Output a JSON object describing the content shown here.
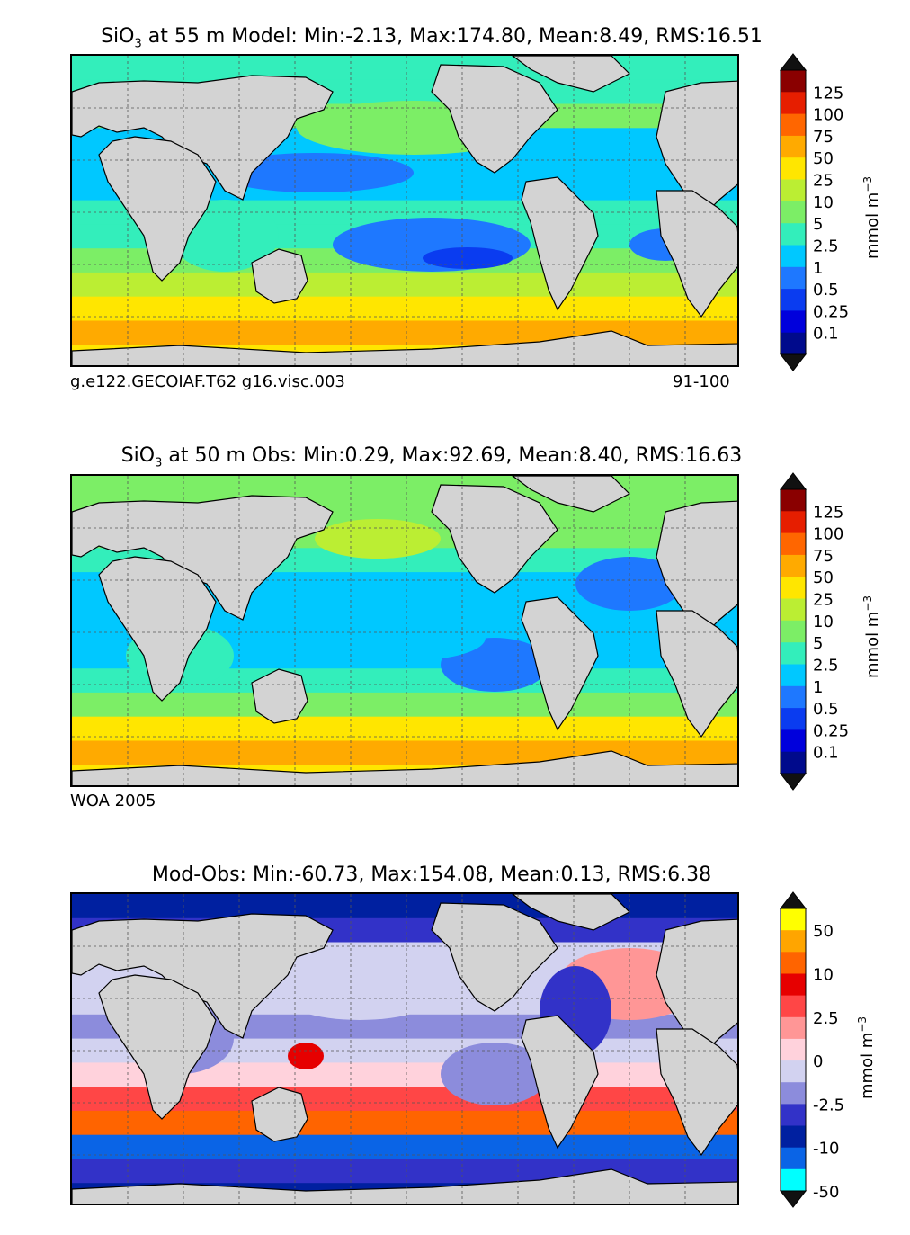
{
  "colors": {
    "land": "#d3d3d3",
    "grid": "#555555",
    "coast": "#000000",
    "sio3_levels": [
      "#000a8c",
      "#0000dc",
      "#0a3cf0",
      "#1e78ff",
      "#00c8ff",
      "#33eebb",
      "#7cee66",
      "#bbee33",
      "#ffe600",
      "#ffaa00",
      "#ff6600",
      "#e61e00",
      "#8a0000"
    ],
    "diff_levels": [
      "#00ffff",
      "#0a64e6",
      "#0020a0",
      "#3232c8",
      "#8c8cdc",
      "#d2d2f0",
      "#ffd2dc",
      "#ff9696",
      "#ff4646",
      "#e60000",
      "#ff6400",
      "#ffa500",
      "#ffff00"
    ]
  },
  "chart_data": [
    {
      "type": "heatmap",
      "title_prefix": "SiO",
      "title_sub": "3",
      "title_rest": " at 55 m Model: Min:-2.13, Max:174.80, Mean:8.49, RMS:16.51",
      "caption_left": "g.e122.GECOIAF.T62 g16.visc.003",
      "caption_right": "91-100",
      "colorbar": {
        "label": "mmol m",
        "label_sup": "−3",
        "ticks": [
          "125",
          "100",
          "75",
          "50",
          "25",
          "10",
          "5",
          "2.5",
          "1",
          "0.5",
          "0.25",
          "0.1"
        ],
        "extend": "both"
      },
      "stats": {
        "min": -2.13,
        "max": 174.8,
        "mean": 8.49,
        "rms": 16.51
      }
    },
    {
      "type": "heatmap",
      "title_prefix": "SiO",
      "title_sub": "3",
      "title_rest": " at 50 m Obs: Min:0.29, Max:92.69, Mean:8.40, RMS:16.63",
      "caption_left": "WOA 2005",
      "caption_right": "",
      "colorbar": {
        "label": "mmol m",
        "label_sup": "−3",
        "ticks": [
          "125",
          "100",
          "75",
          "50",
          "25",
          "10",
          "5",
          "2.5",
          "1",
          "0.5",
          "0.25",
          "0.1"
        ],
        "extend": "both"
      },
      "stats": {
        "min": 0.29,
        "max": 92.69,
        "mean": 8.4,
        "rms": 16.63
      }
    },
    {
      "type": "heatmap",
      "title_prefix": "",
      "title_sub": "",
      "title_rest": "Mod-Obs: Min:-60.73, Max:154.08, Mean:0.13, RMS:6.38",
      "caption_left": "",
      "caption_right": "",
      "colorbar": {
        "label": "mmol m",
        "label_sup": "−3",
        "ticks": [
          "50",
          "10",
          "2.5",
          "0",
          "-2.5",
          "-10",
          "-50"
        ],
        "extend": "both"
      },
      "stats": {
        "min": -60.73,
        "max": 154.08,
        "mean": 0.13,
        "rms": 6.38
      }
    }
  ]
}
